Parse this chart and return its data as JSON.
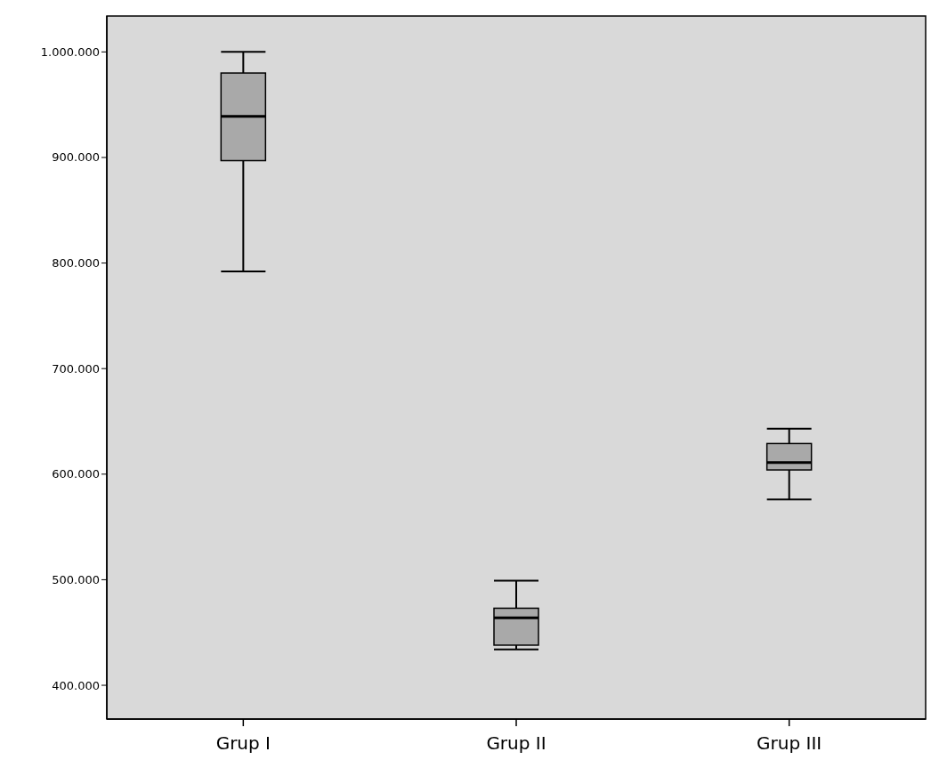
{
  "chart_data": {
    "type": "box",
    "categories": [
      "Grup I",
      "Grup II",
      "Grup III"
    ],
    "boxes": [
      {
        "low": 792000,
        "q1": 897000,
        "median": 939000,
        "q3": 980000,
        "high": 1000000
      },
      {
        "low": 434000,
        "q1": 438000,
        "median": 464000,
        "q3": 473000,
        "high": 499000
      },
      {
        "low": 576000,
        "q1": 604000,
        "median": 611000,
        "q3": 629000,
        "high": 643000
      }
    ],
    "color": "#a9a9a9",
    "ylim": [
      368000,
      1034000
    ],
    "yticks": [
      {
        "value": 400000,
        "label": "400.000"
      },
      {
        "value": 500000,
        "label": "500.000"
      },
      {
        "value": 600000,
        "label": "600.000"
      },
      {
        "value": 700000,
        "label": "700.000"
      },
      {
        "value": 800000,
        "label": "800.000"
      },
      {
        "value": 900000,
        "label": "900.000"
      },
      {
        "value": 1000000,
        "label": "1.000.000"
      }
    ],
    "grid": false
  }
}
